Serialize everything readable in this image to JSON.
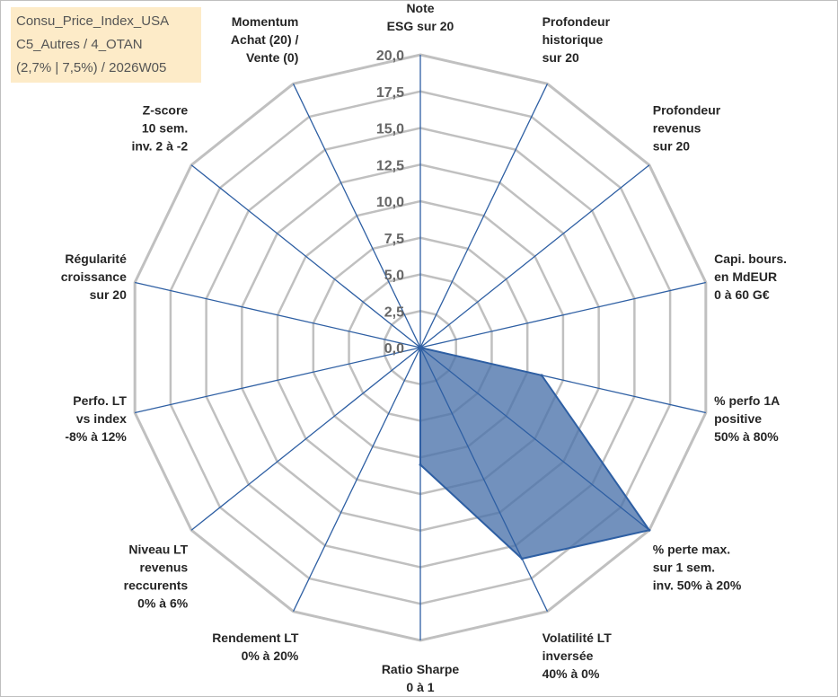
{
  "info_box": {
    "line1": "Consu_Price_Index_USA",
    "line2": "C5_Autres / 4_OTAN",
    "line3": "(2,7% | 7,5%) / 2026W05"
  },
  "colors": {
    "grid": "#c0c0c0",
    "spoke": "#2e5fa3",
    "series_fill": "#4a72aa",
    "series_line": "#2e5fa3",
    "tick_text": "#666666",
    "label_text": "#262626",
    "info_box_bg": "#fdebc8"
  },
  "chart_data": {
    "type": "radar",
    "range": [
      0,
      20
    ],
    "ticks": [
      "0,0",
      "2,5",
      "5,0",
      "7,5",
      "10,0",
      "12,5",
      "15,0",
      "17,5",
      "20,0"
    ],
    "axes": [
      [
        "Note",
        "ESG sur 20"
      ],
      [
        "Profondeur",
        "historique",
        "sur 20"
      ],
      [
        "Profondeur",
        "revenus",
        "sur 20"
      ],
      [
        "Capi. bours.",
        "en MdEUR",
        "0 à 60 G€"
      ],
      [
        "% perfo 1A",
        "positive",
        "50% à 80%"
      ],
      [
        "% perte max.",
        "sur 1 sem.",
        "inv. 50% à 20%"
      ],
      [
        "Volatilité LT",
        "inversée",
        "40% à 0%"
      ],
      [
        "Ratio Sharpe",
        "0 à 1"
      ],
      [
        "Rendement LT",
        "0% à 20%"
      ],
      [
        "Niveau LT",
        "revenus",
        "reccurents",
        "0% à 6%"
      ],
      [
        "Perfo. LT",
        "vs index",
        "-8% à 12%"
      ],
      [
        "Régularité",
        "croissance",
        "sur 20"
      ],
      [
        "Z-score",
        "10 sem.",
        "inv. 2 à -2"
      ],
      [
        "Momentum",
        "Achat (20) /",
        "Vente (0)"
      ]
    ],
    "series": [
      {
        "values": [
          0,
          0,
          0,
          0,
          8.5,
          20,
          16,
          8,
          0,
          0,
          0,
          0,
          0,
          0
        ]
      }
    ]
  }
}
